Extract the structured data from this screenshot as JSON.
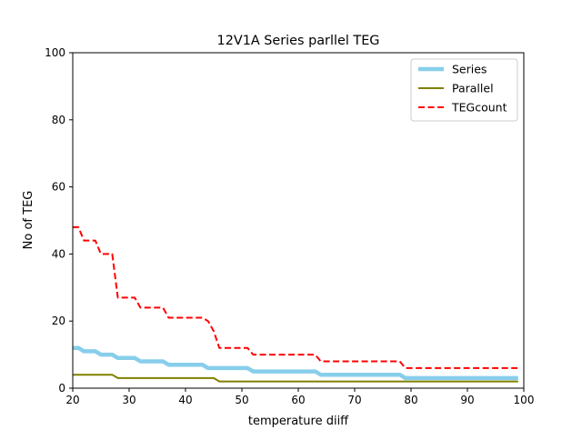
{
  "chart_data": {
    "type": "line",
    "title": "12V1A Series parllel TEG",
    "xlabel": "temperature diiff",
    "ylabel": "No of TEG",
    "xlim": [
      20,
      100
    ],
    "ylim": [
      0,
      100
    ],
    "xticks": [
      20,
      30,
      40,
      50,
      60,
      70,
      80,
      90,
      100
    ],
    "yticks": [
      0,
      20,
      40,
      60,
      80,
      100
    ],
    "grid": false,
    "legend_position": "top-right",
    "series": [
      {
        "name": "Series",
        "color": "#87ceeb",
        "style": "solid-thick",
        "points": [
          [
            20,
            12
          ],
          [
            21,
            12
          ],
          [
            22,
            11
          ],
          [
            23,
            11
          ],
          [
            24,
            11
          ],
          [
            25,
            10
          ],
          [
            26,
            10
          ],
          [
            27,
            10
          ],
          [
            28,
            9
          ],
          [
            29,
            9
          ],
          [
            30,
            9
          ],
          [
            31,
            9
          ],
          [
            32,
            8
          ],
          [
            33,
            8
          ],
          [
            34,
            8
          ],
          [
            35,
            8
          ],
          [
            36,
            8
          ],
          [
            37,
            7
          ],
          [
            38,
            7
          ],
          [
            39,
            7
          ],
          [
            40,
            7
          ],
          [
            41,
            7
          ],
          [
            42,
            7
          ],
          [
            43,
            7
          ],
          [
            44,
            6
          ],
          [
            45,
            6
          ],
          [
            46,
            6
          ],
          [
            47,
            6
          ],
          [
            48,
            6
          ],
          [
            49,
            6
          ],
          [
            50,
            6
          ],
          [
            51,
            6
          ],
          [
            52,
            5
          ],
          [
            53,
            5
          ],
          [
            54,
            5
          ],
          [
            55,
            5
          ],
          [
            56,
            5
          ],
          [
            57,
            5
          ],
          [
            58,
            5
          ],
          [
            59,
            5
          ],
          [
            60,
            5
          ],
          [
            61,
            5
          ],
          [
            62,
            5
          ],
          [
            63,
            5
          ],
          [
            64,
            4
          ],
          [
            65,
            4
          ],
          [
            66,
            4
          ],
          [
            67,
            4
          ],
          [
            68,
            4
          ],
          [
            69,
            4
          ],
          [
            70,
            4
          ],
          [
            71,
            4
          ],
          [
            72,
            4
          ],
          [
            73,
            4
          ],
          [
            74,
            4
          ],
          [
            75,
            4
          ],
          [
            76,
            4
          ],
          [
            77,
            4
          ],
          [
            78,
            4
          ],
          [
            79,
            3
          ],
          [
            80,
            3
          ],
          [
            85,
            3
          ],
          [
            90,
            3
          ],
          [
            95,
            3
          ],
          [
            99,
            3
          ]
        ]
      },
      {
        "name": "Parallel",
        "color": "#808000",
        "style": "solid",
        "points": [
          [
            20,
            4
          ],
          [
            21,
            4
          ],
          [
            22,
            4
          ],
          [
            23,
            4
          ],
          [
            24,
            4
          ],
          [
            25,
            4
          ],
          [
            26,
            4
          ],
          [
            27,
            4
          ],
          [
            28,
            3
          ],
          [
            29,
            3
          ],
          [
            30,
            3
          ],
          [
            35,
            3
          ],
          [
            40,
            3
          ],
          [
            44,
            3
          ],
          [
            45,
            3
          ],
          [
            46,
            2
          ],
          [
            47,
            2
          ],
          [
            50,
            2
          ],
          [
            60,
            2
          ],
          [
            70,
            2
          ],
          [
            80,
            2
          ],
          [
            90,
            2
          ],
          [
            99,
            2
          ]
        ]
      },
      {
        "name": "TEGcount",
        "color": "#ff0000",
        "style": "dashed",
        "points": [
          [
            20,
            48
          ],
          [
            21,
            48
          ],
          [
            22,
            44
          ],
          [
            23,
            44
          ],
          [
            24,
            44
          ],
          [
            25,
            40
          ],
          [
            26,
            40
          ],
          [
            27,
            40
          ],
          [
            28,
            27
          ],
          [
            29,
            27
          ],
          [
            30,
            27
          ],
          [
            31,
            27
          ],
          [
            32,
            24
          ],
          [
            33,
            24
          ],
          [
            34,
            24
          ],
          [
            35,
            24
          ],
          [
            36,
            24
          ],
          [
            37,
            21
          ],
          [
            38,
            21
          ],
          [
            39,
            21
          ],
          [
            40,
            21
          ],
          [
            41,
            21
          ],
          [
            42,
            21
          ],
          [
            43,
            21
          ],
          [
            44,
            20
          ],
          [
            45,
            17
          ],
          [
            46,
            12
          ],
          [
            47,
            12
          ],
          [
            48,
            12
          ],
          [
            49,
            12
          ],
          [
            50,
            12
          ],
          [
            51,
            12
          ],
          [
            52,
            10
          ],
          [
            53,
            10
          ],
          [
            54,
            10
          ],
          [
            55,
            10
          ],
          [
            56,
            10
          ],
          [
            57,
            10
          ],
          [
            58,
            10
          ],
          [
            59,
            10
          ],
          [
            60,
            10
          ],
          [
            61,
            10
          ],
          [
            62,
            10
          ],
          [
            63,
            10
          ],
          [
            64,
            8
          ],
          [
            65,
            8
          ],
          [
            66,
            8
          ],
          [
            67,
            8
          ],
          [
            68,
            8
          ],
          [
            69,
            8
          ],
          [
            70,
            8
          ],
          [
            71,
            8
          ],
          [
            72,
            8
          ],
          [
            73,
            8
          ],
          [
            74,
            8
          ],
          [
            75,
            8
          ],
          [
            76,
            8
          ],
          [
            77,
            8
          ],
          [
            78,
            8
          ],
          [
            79,
            6
          ],
          [
            80,
            6
          ],
          [
            85,
            6
          ],
          [
            90,
            6
          ],
          [
            95,
            6
          ],
          [
            99,
            6
          ]
        ]
      }
    ]
  }
}
